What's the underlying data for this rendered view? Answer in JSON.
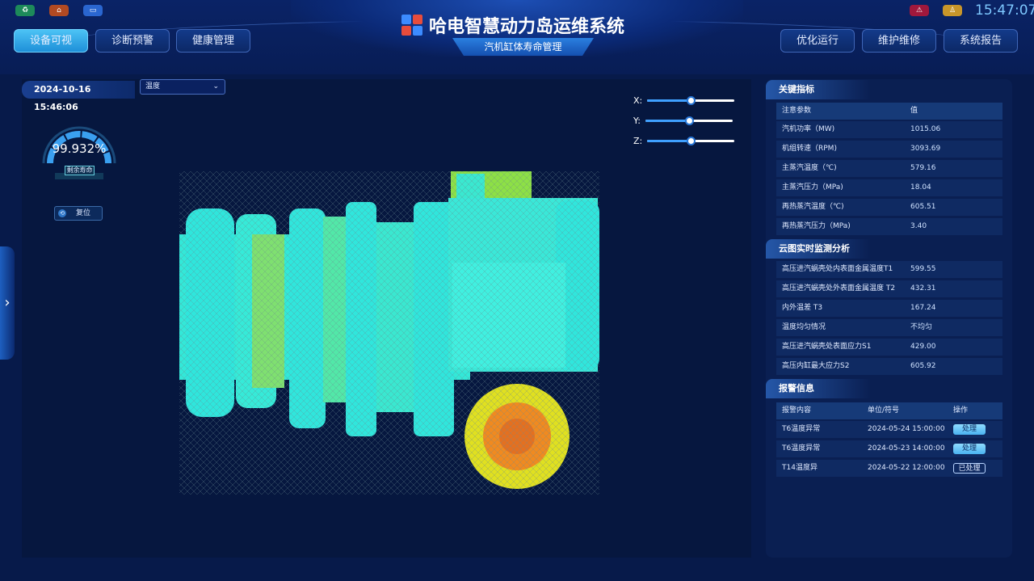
{
  "header": {
    "title": "哈电智慧动力岛运维系统",
    "subtitle": "汽机缸体寿命管理",
    "time": "15:47:07",
    "left_icons": [
      "recycle-icon",
      "home-icon",
      "monitor-icon"
    ],
    "right_icons": [
      "alarm-icon",
      "user-icon"
    ],
    "nav_left": [
      "设备可视",
      "诊断预警",
      "健康管理"
    ],
    "nav_right": [
      "优化运行",
      "维护维修",
      "系统报告"
    ],
    "active": "设备可视"
  },
  "view": {
    "datetime": "2024-10-16 15:46:06",
    "select": "温度",
    "sliders": [
      {
        "label": "X:",
        "value": 0.5
      },
      {
        "label": "Y:",
        "value": 0.5
      },
      {
        "label": "Z:",
        "value": 0.5
      }
    ],
    "gauge": {
      "value": "99.932%",
      "label": "剩余寿命",
      "fraction": 0.99932
    },
    "reset": "复位"
  },
  "key": {
    "title": "关键指标",
    "cols": [
      "注意参数",
      "值"
    ],
    "rows": [
      [
        "汽机功率（MW)",
        "1015.06"
      ],
      [
        "机组转速（RPM)",
        "3093.69"
      ],
      [
        "主蒸汽温度（℃)",
        "579.16"
      ],
      [
        "主蒸汽压力（MPa)",
        "18.04"
      ],
      [
        "再热蒸汽温度（℃)",
        "605.51"
      ],
      [
        "再热蒸汽压力（MPa)",
        "3.40"
      ]
    ]
  },
  "cloud": {
    "title": "云图实时监测分析",
    "rows": [
      [
        "高压进汽蜗壳处内表面金属温度T1",
        "599.55"
      ],
      [
        "高压进汽蜗壳处外表面金属温度 T2",
        "432.31"
      ],
      [
        "内外温差 T3",
        "167.24"
      ],
      [
        "温度均匀情况",
        "不均匀"
      ],
      [
        "高压进汽蜗壳处表面应力S1",
        "429.00"
      ],
      [
        "高压内缸最大应力S2",
        "605.92"
      ]
    ]
  },
  "alarm": {
    "title": "报警信息",
    "cols": [
      "报警内容",
      "单位/符号",
      "操作"
    ],
    "rows": [
      [
        "T6温度异常",
        "2024-05-24 15:00:00",
        "处理"
      ],
      [
        "T6温度异常",
        "2024-05-23 14:00:00",
        "处理"
      ],
      [
        "T14温度异",
        "2024-05-22 12:00:00",
        "已处理"
      ]
    ]
  }
}
